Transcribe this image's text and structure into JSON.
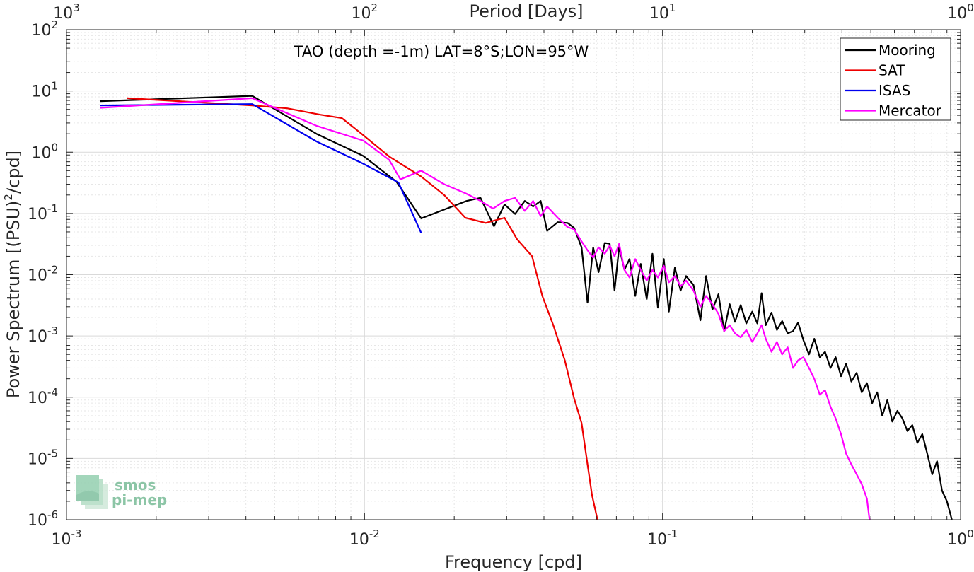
{
  "chart_data": {
    "type": "line",
    "xscale": "log",
    "yscale": "log",
    "xlim": [
      0.001,
      1
    ],
    "ylim": [
      1e-06,
      100
    ],
    "xlabel": "Frequency [cpd]",
    "ylabel": "Power Spectrum [(PSU)",
    "ylabel_sup": "2",
    "ylabel_tail": "/cpd]",
    "top_axis_label": "Period [Days]",
    "annotation": "TAO (depth =-1m) LAT=8°S;LON=95°W",
    "grid": true,
    "legend_position": "top-right",
    "x_ticks": [
      {
        "base": "10",
        "exp": "-3",
        "value": 0.001
      },
      {
        "base": "10",
        "exp": "-2",
        "value": 0.01
      },
      {
        "base": "10",
        "exp": "-1",
        "value": 0.1
      },
      {
        "base": "10",
        "exp": "0",
        "value": 1
      }
    ],
    "top_ticks": [
      {
        "base": "10",
        "exp": "3",
        "value": 0.001
      },
      {
        "base": "10",
        "exp": "2",
        "value": 0.01
      },
      {
        "base": "10",
        "exp": "1",
        "value": 0.1
      },
      {
        "base": "10",
        "exp": "0",
        "value": 1
      }
    ],
    "y_ticks": [
      {
        "base": "10",
        "exp": "2",
        "value": 100
      },
      {
        "base": "10",
        "exp": "1",
        "value": 10
      },
      {
        "base": "10",
        "exp": "0",
        "value": 1
      },
      {
        "base": "10",
        "exp": "-1",
        "value": 0.1
      },
      {
        "base": "10",
        "exp": "-2",
        "value": 0.01
      },
      {
        "base": "10",
        "exp": "-3",
        "value": 0.001
      },
      {
        "base": "10",
        "exp": "-4",
        "value": 0.0001
      },
      {
        "base": "10",
        "exp": "-5",
        "value": 1e-05
      },
      {
        "base": "10",
        "exp": "-6",
        "value": 1e-06
      }
    ],
    "series": [
      {
        "name": "Mooring",
        "color": "#000000",
        "points": [
          [
            0.0013,
            6.8
          ],
          [
            0.0042,
            8.3
          ],
          [
            0.0069,
            2.0
          ],
          [
            0.0099,
            0.87
          ],
          [
            0.0128,
            0.33
          ],
          [
            0.0155,
            0.083
          ],
          [
            0.022,
            0.16
          ],
          [
            0.0245,
            0.18
          ],
          [
            0.0272,
            0.062
          ],
          [
            0.0295,
            0.14
          ],
          [
            0.032,
            0.098
          ],
          [
            0.0345,
            0.16
          ],
          [
            0.0368,
            0.13
          ],
          [
            0.039,
            0.16
          ],
          [
            0.041,
            0.052
          ],
          [
            0.0445,
            0.072
          ],
          [
            0.048,
            0.07
          ],
          [
            0.0505,
            0.058
          ],
          [
            0.0535,
            0.028
          ],
          [
            0.056,
            0.0035
          ],
          [
            0.0585,
            0.028
          ],
          [
            0.061,
            0.011
          ],
          [
            0.064,
            0.033
          ],
          [
            0.0665,
            0.032
          ],
          [
            0.069,
            0.0055
          ],
          [
            0.0715,
            0.028
          ],
          [
            0.0745,
            0.012
          ],
          [
            0.0775,
            0.018
          ],
          [
            0.081,
            0.0045
          ],
          [
            0.0845,
            0.015
          ],
          [
            0.0885,
            0.004
          ],
          [
            0.0925,
            0.022
          ],
          [
            0.0965,
            0.0029
          ],
          [
            0.101,
            0.018
          ],
          [
            0.105,
            0.0025
          ],
          [
            0.11,
            0.013
          ],
          [
            0.115,
            0.0055
          ],
          [
            0.12,
            0.0095
          ],
          [
            0.127,
            0.0068
          ],
          [
            0.134,
            0.0018
          ],
          [
            0.14,
            0.0095
          ],
          [
            0.147,
            0.0027
          ],
          [
            0.154,
            0.0048
          ],
          [
            0.161,
            0.0012
          ],
          [
            0.168,
            0.0033
          ],
          [
            0.175,
            0.0017
          ],
          [
            0.183,
            0.0032
          ],
          [
            0.191,
            0.0016
          ],
          [
            0.2,
            0.0025
          ],
          [
            0.208,
            0.0016
          ],
          [
            0.215,
            0.005
          ],
          [
            0.222,
            0.0015
          ],
          [
            0.232,
            0.0024
          ],
          [
            0.242,
            0.00125
          ],
          [
            0.252,
            0.00175
          ],
          [
            0.263,
            0.0011
          ],
          [
            0.274,
            0.0012
          ],
          [
            0.285,
            0.00165
          ],
          [
            0.297,
            0.00085
          ],
          [
            0.31,
            0.0005
          ],
          [
            0.323,
            0.0009
          ],
          [
            0.337,
            0.00045
          ],
          [
            0.351,
            0.00055
          ],
          [
            0.366,
            0.0003
          ],
          [
            0.381,
            0.00045
          ],
          [
            0.397,
            0.00022
          ],
          [
            0.413,
            0.00035
          ],
          [
            0.43,
            0.00018
          ],
          [
            0.448,
            0.00025
          ],
          [
            0.466,
            0.00012
          ],
          [
            0.485,
            0.00017
          ],
          [
            0.505,
            8e-05
          ],
          [
            0.525,
            0.00012
          ],
          [
            0.546,
            5e-05
          ],
          [
            0.568,
            9e-05
          ],
          [
            0.59,
            4e-05
          ],
          [
            0.614,
            6e-05
          ],
          [
            0.638,
            4.5e-05
          ],
          [
            0.663,
            2.8e-05
          ],
          [
            0.689,
            3.5e-05
          ],
          [
            0.716,
            1.8e-05
          ],
          [
            0.744,
            2.5e-05
          ],
          [
            0.773,
            1.2e-05
          ],
          [
            0.803,
            5.5e-06
          ],
          [
            0.834,
            9e-06
          ],
          [
            0.866,
            3e-06
          ],
          [
            0.9,
            2e-06
          ],
          [
            0.935,
            1e-06
          ]
        ]
      },
      {
        "name": "SAT",
        "color": "#ee0000",
        "points": [
          [
            0.0016,
            7.6
          ],
          [
            0.0042,
            5.8
          ],
          [
            0.0055,
            5.2
          ],
          [
            0.0071,
            4.1
          ],
          [
            0.0084,
            3.6
          ],
          [
            0.0099,
            1.9
          ],
          [
            0.0121,
            0.85
          ],
          [
            0.0155,
            0.4
          ],
          [
            0.0185,
            0.2
          ],
          [
            0.0218,
            0.085
          ],
          [
            0.0255,
            0.07
          ],
          [
            0.0295,
            0.085
          ],
          [
            0.0325,
            0.038
          ],
          [
            0.0365,
            0.02
          ],
          [
            0.0395,
            0.0045
          ],
          [
            0.043,
            0.0015
          ],
          [
            0.047,
            0.0004
          ],
          [
            0.0505,
            9.5e-05
          ],
          [
            0.0535,
            3.8e-05
          ],
          [
            0.056,
            8e-06
          ],
          [
            0.058,
            2.5e-06
          ],
          [
            0.0605,
            1e-06
          ]
        ]
      },
      {
        "name": "ISAS",
        "color": "#0000ee",
        "points": [
          [
            0.0013,
            5.8
          ],
          [
            0.0042,
            6.1
          ],
          [
            0.0069,
            1.5
          ],
          [
            0.0099,
            0.65
          ],
          [
            0.013,
            0.32
          ],
          [
            0.0155,
            0.048
          ]
        ]
      },
      {
        "name": "Mercator",
        "color": "#ff00ff",
        "points": [
          [
            0.0013,
            5.3
          ],
          [
            0.0042,
            7.6
          ],
          [
            0.0069,
            2.7
          ],
          [
            0.0099,
            1.55
          ],
          [
            0.0121,
            0.75
          ],
          [
            0.0132,
            0.36
          ],
          [
            0.0155,
            0.5
          ],
          [
            0.0185,
            0.3
          ],
          [
            0.022,
            0.21
          ],
          [
            0.0245,
            0.16
          ],
          [
            0.027,
            0.12
          ],
          [
            0.0295,
            0.16
          ],
          [
            0.032,
            0.18
          ],
          [
            0.0345,
            0.11
          ],
          [
            0.0368,
            0.16
          ],
          [
            0.039,
            0.09
          ],
          [
            0.041,
            0.13
          ],
          [
            0.0445,
            0.085
          ],
          [
            0.048,
            0.06
          ],
          [
            0.0505,
            0.055
          ],
          [
            0.0535,
            0.035
          ],
          [
            0.056,
            0.025
          ],
          [
            0.0585,
            0.019
          ],
          [
            0.061,
            0.028
          ],
          [
            0.064,
            0.022
          ],
          [
            0.0665,
            0.03
          ],
          [
            0.069,
            0.02
          ],
          [
            0.0715,
            0.032
          ],
          [
            0.0745,
            0.012
          ],
          [
            0.0775,
            0.009
          ],
          [
            0.081,
            0.018
          ],
          [
            0.0845,
            0.012
          ],
          [
            0.0885,
            0.008
          ],
          [
            0.0925,
            0.012
          ],
          [
            0.0965,
            0.009
          ],
          [
            0.101,
            0.014
          ],
          [
            0.105,
            0.0075
          ],
          [
            0.11,
            0.0095
          ],
          [
            0.115,
            0.0065
          ],
          [
            0.12,
            0.008
          ],
          [
            0.127,
            0.0055
          ],
          [
            0.134,
            0.003
          ],
          [
            0.14,
            0.0045
          ],
          [
            0.147,
            0.0033
          ],
          [
            0.154,
            0.0023
          ],
          [
            0.161,
            0.0012
          ],
          [
            0.168,
            0.0015
          ],
          [
            0.175,
            0.0011
          ],
          [
            0.183,
            0.00095
          ],
          [
            0.191,
            0.00125
          ],
          [
            0.2,
            0.0008
          ],
          [
            0.208,
            0.0011
          ],
          [
            0.215,
            0.0015
          ],
          [
            0.222,
            0.0009
          ],
          [
            0.232,
            0.00055
          ],
          [
            0.242,
            0.0008
          ],
          [
            0.252,
            0.0005
          ],
          [
            0.263,
            0.00065
          ],
          [
            0.274,
            0.0003
          ],
          [
            0.285,
            0.0004
          ],
          [
            0.297,
            0.00045
          ],
          [
            0.31,
            0.0003
          ],
          [
            0.323,
            0.0002
          ],
          [
            0.337,
            0.00011
          ],
          [
            0.351,
            0.00013
          ],
          [
            0.366,
            7e-05
          ],
          [
            0.381,
            4.5e-05
          ],
          [
            0.397,
            2.5e-05
          ],
          [
            0.413,
            1.2e-05
          ],
          [
            0.43,
            8e-06
          ],
          [
            0.448,
            5.5e-06
          ],
          [
            0.466,
            3.8e-06
          ],
          [
            0.485,
            2.2e-06
          ],
          [
            0.495,
            1e-06
          ]
        ]
      }
    ]
  },
  "logo": {
    "line1": "smos",
    "line2": "pi-mep"
  }
}
